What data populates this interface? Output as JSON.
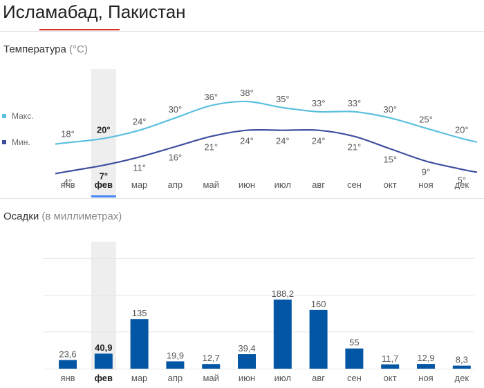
{
  "page": {
    "title": "Исламабад, Пакистан",
    "selected_month_index": 1
  },
  "colors": {
    "max_line": "#5bc0de",
    "min_line": "#3f4e9f",
    "bar": "#0356a3",
    "accent_underline": "#d93025",
    "selected_tab": "#4285f4",
    "highlight": "#eeeeee"
  },
  "temperature": {
    "title": "Температура",
    "unit": "(°C)",
    "legend_max": "Макс.",
    "legend_min": "Мин."
  },
  "precipitation": {
    "title": "Осадки",
    "unit": "(в миллиметрах)"
  },
  "chart_data": [
    {
      "type": "line",
      "categories": [
        "янв",
        "фев",
        "мар",
        "апр",
        "май",
        "июн",
        "июл",
        "авг",
        "сен",
        "окт",
        "ноя",
        "дек"
      ],
      "series": [
        {
          "name": "Макс.",
          "values": [
            18,
            20,
            24,
            30,
            36,
            38,
            35,
            33,
            33,
            30,
            25,
            20
          ],
          "color": "#5bc0de"
        },
        {
          "name": "Мин.",
          "values": [
            4,
            7,
            11,
            16,
            21,
            24,
            24,
            24,
            21,
            15,
            9,
            5
          ],
          "color": "#3f4e9f"
        }
      ],
      "title": "Температура",
      "unit": "(°C)",
      "legend_position": "left"
    },
    {
      "type": "bar",
      "categories": [
        "янв",
        "фев",
        "мар",
        "апр",
        "май",
        "июн",
        "июл",
        "авг",
        "сен",
        "окт",
        "ноя",
        "дек"
      ],
      "values": [
        23.6,
        40.9,
        135,
        19.9,
        12.7,
        39.4,
        188.2,
        160,
        55,
        11.7,
        12.9,
        8.3
      ],
      "value_labels": [
        "23,6",
        "40,9",
        "135",
        "19,9",
        "12,7",
        "39,4",
        "188,2",
        "160",
        "55",
        "11,7",
        "12,9",
        "8,3"
      ],
      "title": "Осадки",
      "unit": "(в миллиметрах)",
      "ylim": [
        0,
        300
      ],
      "grid": true
    }
  ]
}
